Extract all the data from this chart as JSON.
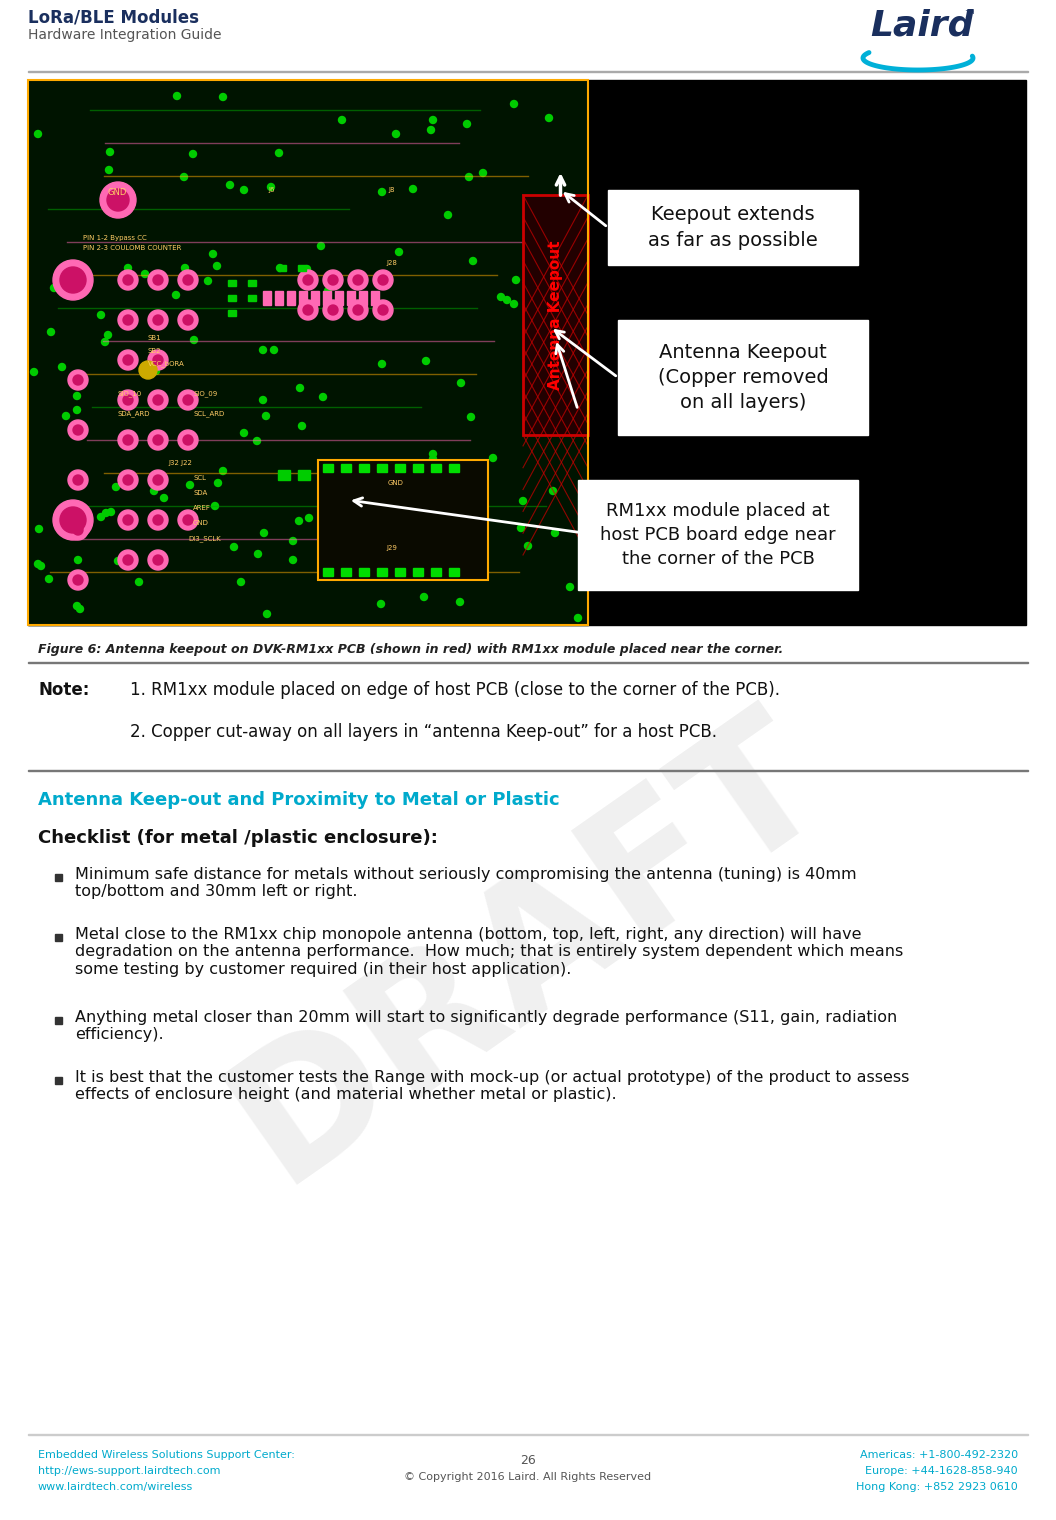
{
  "page_bg": "#ffffff",
  "header_title": "LoRa/BLE Modules",
  "header_subtitle": "Hardware Integration Guide",
  "header_title_color": "#1a2f5e",
  "header_subtitle_color": "#555555",
  "figure_caption": "Figure 6: Antenna keepout on DVK-RM1xx PCB (shown in red) with RM1xx module placed near the corner.",
  "note_label": "Note:",
  "note_1": "1. RM1xx module placed on edge of host PCB (close to the corner of the PCB).",
  "note_2": "2. Copper cut-away on all layers in “antenna Keep-out” for a host PCB.",
  "section_title": "Antenna Keep-out and Proximity to Metal or Plastic",
  "section_title_color": "#00aacc",
  "checklist_title": "Checklist (for metal /plastic enclosure):",
  "bullet_1": "Minimum safe distance for metals without seriously compromising the antenna (tuning) is 40mm\ntop/bottom and 30mm left or right.",
  "bullet_2": "Metal close to the RM1xx chip monopole antenna (bottom, top, left, right, any direction) will have\ndegradation on the antenna performance.  How much; that is entirely system dependent which means\nsome testing by customer required (in their host application).",
  "bullet_3": "Anything metal closer than 20mm will start to significantly degrade performance (S11, gain, radiation\nefficiency).",
  "bullet_4": "It is best that the customer tests the Range with mock-up (or actual prototype) of the product to assess\neffects of enclosure height (and material whether metal or plastic).",
  "footer_left_1": "Embedded Wireless Solutions Support Center:",
  "footer_left_2": "http://ews-support.lairdtech.com",
  "footer_left_3": "www.lairdtech.com/wireless",
  "footer_center_1": "26",
  "footer_center_2": "© Copyright 2016 Laird. All Rights Reserved",
  "footer_right_1": "Americas: +1-800-492-2320",
  "footer_right_2": "Europe: +44-1628-858-940",
  "footer_right_3": "Hong Kong: +852 2923 0610",
  "footer_color": "#00aacc",
  "watermark_text": "DRAFT",
  "callout_1_title": "Keepout extends\nas far as possible",
  "callout_2_title": "Antenna Keepout\n(Copper removed\non all layers)",
  "callout_3_title": "RM1xx module placed at\nhost PCB board edge near\nthe corner of the PCB",
  "antenna_keepout_label": "Antenna Keepout"
}
